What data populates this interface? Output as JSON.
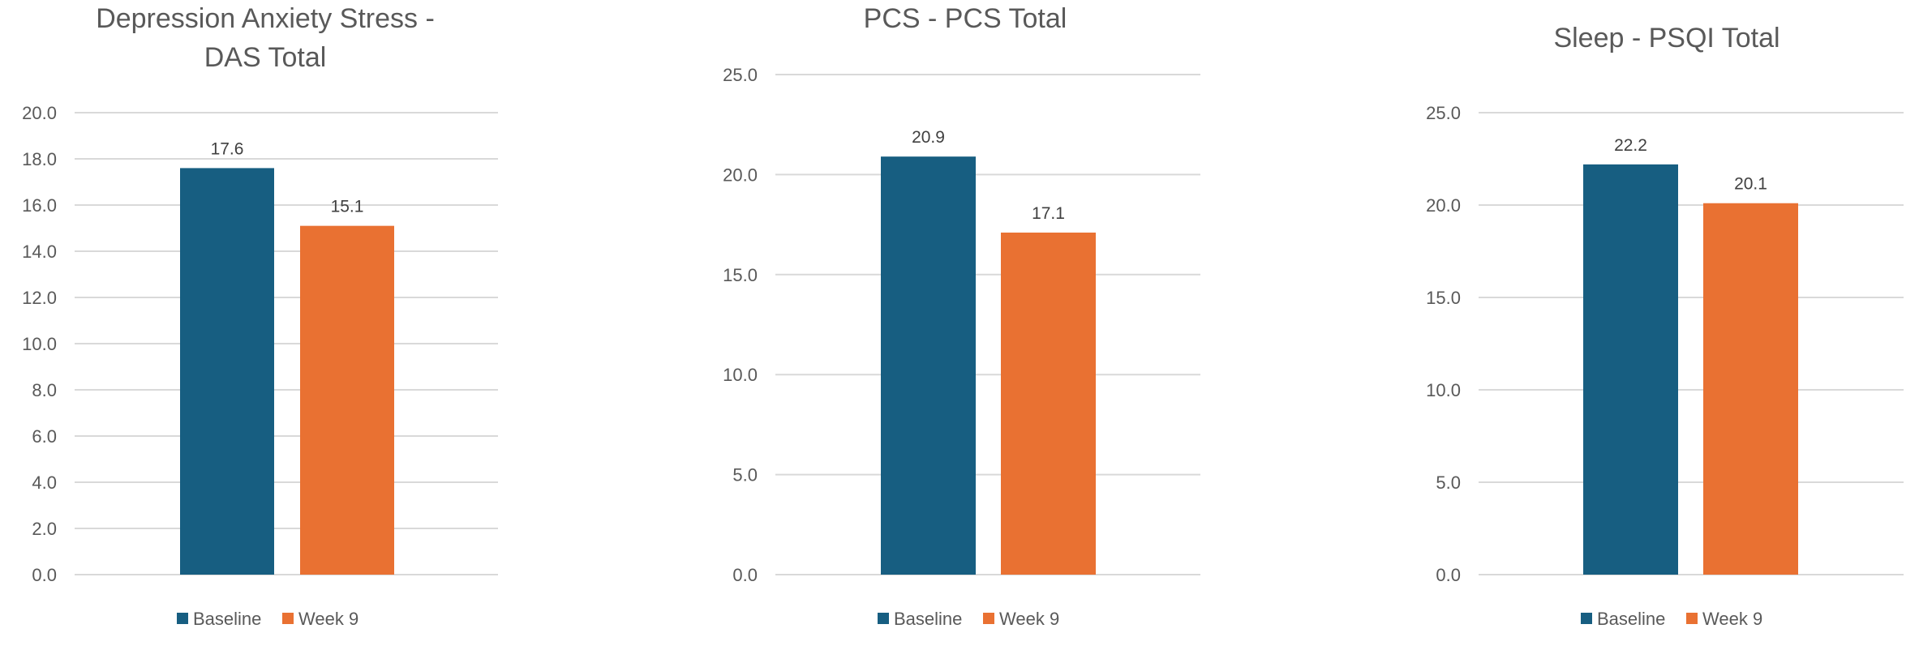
{
  "chart_data": [
    {
      "type": "bar",
      "title": [
        "Depression Anxiety Stress -",
        "DAS Total"
      ],
      "categories": [
        ""
      ],
      "series": [
        {
          "name": "Baseline",
          "values": [
            17.6
          ]
        },
        {
          "name": "Week 9",
          "values": [
            15.1
          ]
        }
      ],
      "data_labels": [
        "17.6",
        "15.1"
      ],
      "ylim": [
        0,
        20
      ],
      "yticks": [
        "0.0",
        "2.0",
        "4.0",
        "6.0",
        "8.0",
        "10.0",
        "12.0",
        "14.0",
        "16.0",
        "18.0",
        "20.0"
      ],
      "grid": true,
      "legend": "bottom"
    },
    {
      "type": "bar",
      "title": [
        "PCS - PCS Total"
      ],
      "categories": [
        ""
      ],
      "series": [
        {
          "name": "Baseline",
          "values": [
            20.9
          ]
        },
        {
          "name": "Week 9",
          "values": [
            17.1
          ]
        }
      ],
      "data_labels": [
        "20.9",
        "17.1"
      ],
      "ylim": [
        0,
        25
      ],
      "yticks": [
        "0.0",
        "5.0",
        "10.0",
        "15.0",
        "20.0",
        "25.0"
      ],
      "grid": true,
      "legend": "bottom"
    },
    {
      "type": "bar",
      "title": [
        "Sleep - PSQI Total"
      ],
      "categories": [
        ""
      ],
      "series": [
        {
          "name": "Baseline",
          "values": [
            22.2
          ]
        },
        {
          "name": "Week 9",
          "values": [
            20.1
          ]
        }
      ],
      "data_labels": [
        "22.2",
        "20.1"
      ],
      "ylim": [
        0,
        25
      ],
      "yticks": [
        "0.0",
        "5.0",
        "10.0",
        "15.0",
        "20.0",
        "25.0"
      ],
      "grid": true,
      "legend": "bottom"
    }
  ],
  "colors": {
    "Baseline": "#175e81",
    "Week 9": "#e97132",
    "gridline": "#d9d9d9",
    "text": "#595959"
  }
}
